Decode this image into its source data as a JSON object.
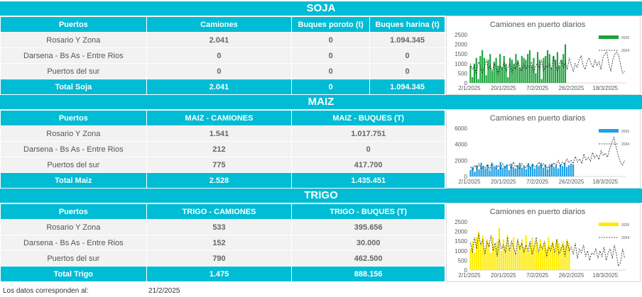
{
  "soja": {
    "title": "SOJA",
    "headers": [
      "Puertos",
      "Camiones",
      "Buques poroto (t)",
      "Buques harina (t)"
    ],
    "rows": [
      [
        "Rosario Y Zona",
        "2.041",
        "0",
        "1.094.345"
      ],
      [
        "Darsena - Bs As - Entre Rios",
        "0",
        "0",
        "0"
      ],
      [
        "Puertos del sur",
        "0",
        "0",
        "0"
      ]
    ],
    "total": [
      "Total Soja",
      "2.041",
      "0",
      "1.094.345"
    ]
  },
  "maiz": {
    "title": "MAIZ",
    "headers": [
      "Puertos",
      "MAIZ - CAMIONES",
      "MAIZ - BUQUES (T)"
    ],
    "rows": [
      [
        "Rosario Y Zona",
        "1.541",
        "1.017.751"
      ],
      [
        "Darsena - Bs As - Entre Rios",
        "212",
        "0"
      ],
      [
        "Puertos del sur",
        "775",
        "417.700"
      ]
    ],
    "total": [
      "Total Maiz",
      "2.528",
      "1.435.451"
    ]
  },
  "trigo": {
    "title": "TRIGO",
    "headers": [
      "Puertos",
      "TRIGO - CAMIONES",
      "TRIGO - BUQUES (T)"
    ],
    "rows": [
      [
        "Rosario Y Zona",
        "533",
        "395.656"
      ],
      [
        "Darsena - Bs As - Entre Rios",
        "152",
        "30.000"
      ],
      [
        "Puertos del sur",
        "790",
        "462.500"
      ]
    ],
    "total": [
      "Total Trigo",
      "1.475",
      "888.156"
    ]
  },
  "footer": {
    "label": "Los datos corresponden al:",
    "date": "21/2/2025"
  },
  "chart_data": [
    {
      "type": "bar",
      "title": "Camiones en puerto diarios",
      "x_ticks": [
        "2/1/2025",
        "20/1/2025",
        "7/2/2025",
        "26/2/2025",
        "18/3/2025"
      ],
      "ylim": [
        0,
        2500
      ],
      "y_ticks": [
        "0",
        "500",
        "1000",
        "1500",
        "2000",
        "2500"
      ],
      "legend": [
        "2025",
        "2024"
      ],
      "colors": {
        "2025": "#1aa33a",
        "2024": "#222222"
      },
      "series": [
        {
          "name": "2025",
          "values": [
            900,
            300,
            1000,
            1300,
            200,
            1400,
            1700,
            1300,
            400,
            1200,
            1500,
            600,
            1100,
            1300,
            900,
            1500,
            800,
            1400,
            1000,
            300,
            1300,
            1200,
            1000,
            1500,
            1100,
            800,
            1400,
            1300,
            1200,
            1500,
            1700,
            900,
            1300,
            500,
            1600,
            1200,
            200,
            1300,
            1400,
            1700,
            1500,
            800,
            1400,
            1200,
            1600,
            900,
            1200,
            1500,
            2000
          ]
        },
        {
          "name": "2024",
          "values": [
            1000,
            700,
            900,
            400,
            1100,
            900,
            500,
            800,
            1200,
            700,
            900,
            600,
            1000,
            800,
            400,
            900,
            700,
            1100,
            600,
            800,
            1000,
            500,
            900,
            700,
            1200,
            800,
            600,
            1000,
            700,
            900,
            800,
            1100,
            500,
            900,
            1000,
            700,
            1200,
            600,
            900,
            800,
            1000,
            700,
            1400,
            900,
            600,
            1000,
            1200,
            800,
            1100,
            700,
            1300,
            900,
            600,
            1000,
            800,
            1200,
            1400,
            900,
            700,
            1100,
            1300,
            1000,
            800,
            1200,
            900,
            1100,
            700,
            1300,
            1500,
            1600,
            1000,
            600,
            1200,
            1500,
            1600,
            1400,
            900,
            500,
            600
          ]
        }
      ]
    },
    {
      "type": "bar",
      "title": "Camiones en puerto diarios",
      "x_ticks": [
        "2/1/2025",
        "20/1/2025",
        "7/2/2025",
        "26/2/2025",
        "18/3/2025"
      ],
      "ylim": [
        0,
        6000
      ],
      "y_ticks": [
        "0",
        "2000",
        "4000",
        "6000"
      ],
      "legend": [
        "2025",
        "2024"
      ],
      "colors": {
        "2025": "#1ea1e6",
        "2024": "#222222"
      },
      "series": [
        {
          "name": "2025",
          "values": [
            800,
            1200,
            600,
            1400,
            900,
            1700,
            1300,
            1000,
            1500,
            700,
            1600,
            1200,
            1400,
            900,
            1800,
            1100,
            1300,
            1500,
            800,
            1600,
            1200,
            1000,
            1400,
            1700,
            1100,
            1300,
            900,
            1500,
            1200,
            1600,
            1000,
            1400,
            1300,
            1700,
            1100,
            1500,
            900,
            1300,
            1600,
            1200,
            1400,
            1000,
            1500,
            1300,
            1700,
            1200,
            1400,
            1600,
            1500
          ]
        },
        {
          "name": "2024",
          "values": [
            1200,
            800,
            1400,
            1000,
            1600,
            900,
            1300,
            1100,
            1500,
            800,
            1700,
            1200,
            1000,
            1400,
            900,
            1600,
            1100,
            1300,
            1500,
            1000,
            1800,
            1200,
            1400,
            900,
            1600,
            1300,
            1100,
            1700,
            1000,
            1500,
            1200,
            1400,
            1800,
            1100,
            1600,
            1300,
            1000,
            1500,
            1200,
            1700,
            1400,
            2000,
            1300,
            1800,
            1500,
            2200,
            1700,
            2000,
            1600,
            2500,
            1800,
            2200,
            1600,
            2800,
            2000,
            2400,
            1900,
            3000,
            2300,
            2700,
            2100,
            3200,
            2600,
            2900,
            2400,
            3400,
            4200,
            4900,
            3700,
            2600,
            1800,
            1400,
            2000
          ]
        }
      ]
    },
    {
      "type": "bar",
      "title": "Camiones en puerto diarios",
      "x_ticks": [
        "2/1/2025",
        "20/1/2025",
        "7/2/2025",
        "26/2/2025",
        "18/3/2025"
      ],
      "ylim": [
        0,
        2500
      ],
      "y_ticks": [
        "0",
        "500",
        "1000",
        "1500",
        "2000",
        "2500"
      ],
      "legend": [
        "2025",
        "2024"
      ],
      "colors": {
        "2025": "#ffeb00",
        "2024": "#222222"
      },
      "series": [
        {
          "name": "2025",
          "values": [
            1100,
            1500,
            900,
            1700,
            2000,
            1300,
            1800,
            1100,
            1600,
            1400,
            900,
            1700,
            1200,
            1500,
            2200,
            1000,
            1600,
            1300,
            1800,
            1100,
            1400,
            1700,
            900,
            1500,
            1300,
            1600,
            1200,
            1800,
            1000,
            1400,
            1700,
            1300,
            1500,
            900,
            1600,
            1200,
            1400,
            1100,
            1700,
            1300,
            1500,
            1000,
            1600,
            1400,
            1200,
            1500,
            1300,
            1600,
            1400
          ]
        },
        {
          "name": "2024",
          "values": [
            1400,
            900,
            1700,
            1100,
            1900,
            1300,
            1600,
            800,
            1500,
            1200,
            1800,
            1000,
            1400,
            700,
            1600,
            1100,
            1300,
            900,
            1700,
            1000,
            1500,
            1200,
            800,
            1600,
            1100,
            1400,
            900,
            1300,
            1000,
            1500,
            800,
            1200,
            1700,
            900,
            1300,
            1100,
            1500,
            700,
            1200,
            1000,
            1400,
            900,
            1600,
            800,
            1100,
            1300,
            700,
            1500,
            1000,
            1200,
            800,
            1400,
            600,
            1100,
            900,
            1300,
            700,
            1000,
            500,
            900,
            800,
            1100,
            600,
            1000,
            700,
            1200,
            500,
            900,
            1100,
            600,
            1300,
            800,
            200,
            400,
            1100,
            600
          ]
        }
      ]
    }
  ]
}
